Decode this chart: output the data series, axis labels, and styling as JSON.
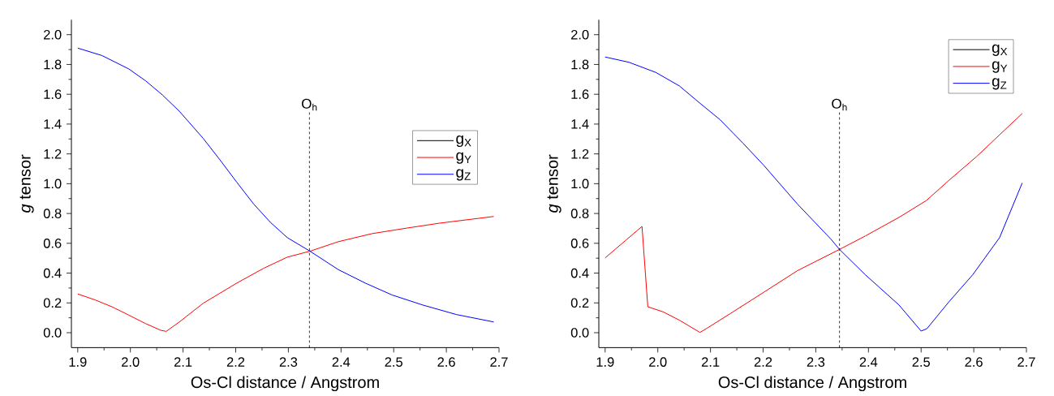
{
  "chart_data": [
    {
      "type": "line",
      "xlabel": "Os-Cl distance / Angstrom",
      "ylabel": "*g* tensor",
      "legend": "right",
      "xlim": [
        1.888,
        2.7
      ],
      "ylim": [
        -0.1,
        2.1
      ],
      "xticks": [
        1.9,
        {
          "value": 2.0,
          "label": "2.0"
        },
        2.1,
        2.2,
        2.3,
        2.4,
        2.5,
        2.6,
        2.7
      ],
      "yticks": [
        {
          "value": 0,
          "label": "0.0"
        },
        0.2,
        0.4,
        0.6,
        0.8,
        {
          "value": 1.0,
          "label": "1.0"
        },
        1.2,
        1.4,
        1.6,
        1.8,
        {
          "value": 2.0,
          "label": "2.0"
        }
      ],
      "ref_lines": [
        {
          "axis": "x",
          "value": 2.34,
          "label": "O$_{h}$",
          "line_style": "dashed",
          "color": "#000000"
        }
      ],
      "series": [
        {
          "name": "g$_{X}$",
          "color": "#000000"
        },
        {
          "name": "g$_{Y}$",
          "color": "#ff0000",
          "x": [
            1.9,
            1.933,
            1.965,
            1.997,
            2.029,
            2.058,
            2.068,
            2.093,
            2.138,
            2.202,
            2.254,
            2.298,
            2.341,
            2.395,
            2.459,
            2.523,
            2.587,
            2.69
          ],
          "values": [
            0.26,
            0.22,
            0.174,
            0.118,
            0.061,
            0.016,
            0.009,
            0.072,
            0.197,
            0.333,
            0.434,
            0.507,
            0.547,
            0.611,
            0.665,
            0.701,
            0.735,
            0.78
          ]
        },
        {
          "name": "g$_{Z}$",
          "color": "#0000ff",
          "x": [
            1.9,
            1.946,
            1.997,
            2.029,
            2.061,
            2.093,
            2.138,
            2.17,
            2.202,
            2.234,
            2.266,
            2.298,
            2.341,
            2.395,
            2.446,
            2.497,
            2.555,
            2.619,
            2.69
          ],
          "values": [
            1.91,
            1.86,
            1.77,
            1.69,
            1.595,
            1.486,
            1.305,
            1.16,
            1.01,
            0.864,
            0.74,
            0.638,
            0.547,
            0.423,
            0.333,
            0.253,
            0.186,
            0.122,
            0.072
          ]
        }
      ]
    },
    {
      "type": "line",
      "xlabel": "Os-Cl distance / Angstrom",
      "ylabel": "*g* tensor",
      "legend": "top right",
      "xlim": [
        1.888,
        2.7
      ],
      "ylim": [
        -0.1,
        2.1
      ],
      "xticks": [
        1.9,
        {
          "value": 2.0,
          "label": "2.0"
        },
        2.1,
        2.2,
        2.3,
        2.4,
        2.5,
        2.6,
        2.7
      ],
      "yticks": [
        {
          "value": 0,
          "label": "0.0"
        },
        0.2,
        0.4,
        0.6,
        0.8,
        {
          "value": 1.0,
          "label": "1.0"
        },
        1.2,
        1.4,
        1.6,
        1.8,
        {
          "value": 2.0,
          "label": "2.0"
        }
      ],
      "ref_lines": [
        {
          "axis": "x",
          "value": 2.345,
          "label": "O$_{h}$",
          "line_style": "dashed",
          "color": "#000000"
        }
      ],
      "series": [
        {
          "name": "g$_{X}$",
          "color": "#000000"
        },
        {
          "name": "g$_{Y}$",
          "color": "#ff0000",
          "x": [
            1.9,
            1.97,
            1.981,
            2.01,
            2.041,
            2.08,
            2.092,
            2.138,
            2.201,
            2.265,
            2.345,
            2.394,
            2.458,
            2.51,
            2.553,
            2.605,
            2.649,
            2.692
          ],
          "values": [
            0.502,
            0.713,
            0.174,
            0.14,
            0.084,
            0.002,
            0.027,
            0.129,
            0.271,
            0.416,
            0.559,
            0.649,
            0.774,
            0.887,
            1.023,
            1.181,
            1.328,
            1.471
          ]
        },
        {
          "name": "g$_{Z}$",
          "color": "#0000ff",
          "x": [
            1.9,
            1.945,
            1.996,
            2.041,
            2.079,
            2.118,
            2.162,
            2.201,
            2.265,
            2.329,
            2.345,
            2.394,
            2.458,
            2.5,
            2.511,
            2.553,
            2.598,
            2.649,
            2.692
          ],
          "values": [
            1.85,
            1.815,
            1.747,
            1.656,
            1.543,
            1.43,
            1.271,
            1.124,
            0.864,
            0.627,
            0.559,
            0.389,
            0.186,
            0.011,
            0.027,
            0.208,
            0.389,
            0.638,
            1.005
          ]
        }
      ]
    }
  ]
}
